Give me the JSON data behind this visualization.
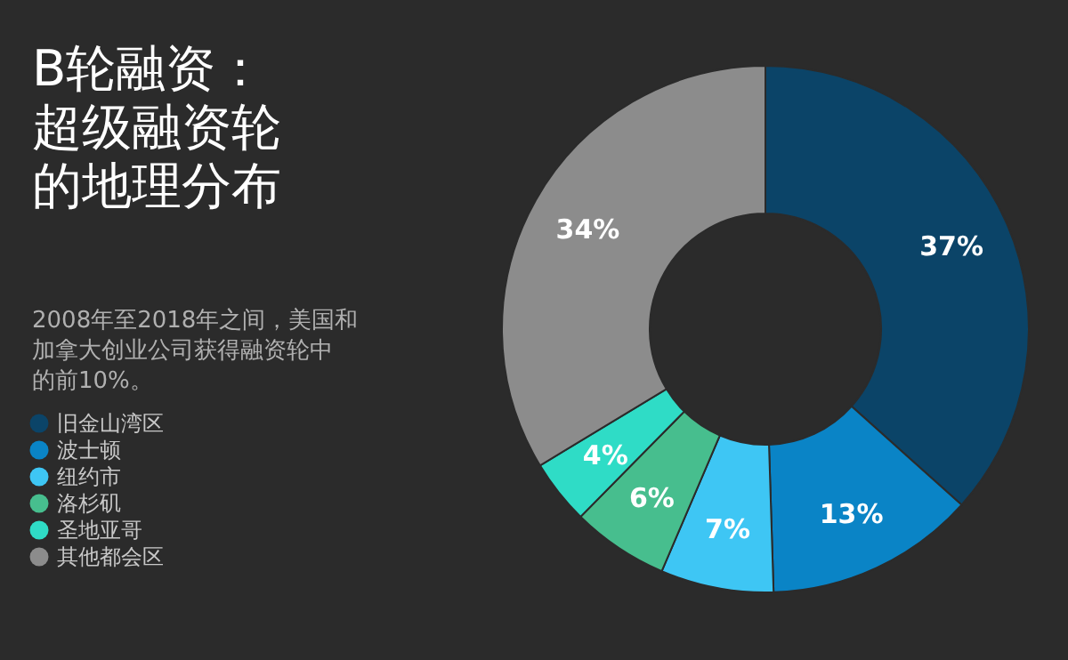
{
  "chart_data": {
    "type": "donut",
    "title": "B轮融资：超级融资轮的地理分布",
    "subtitle": "2008年至2018年之间，美国和加拿大创业公司获得融资轮中的前10%。",
    "categories": [
      "旧金山湾区",
      "波士顿",
      "纽约市",
      "洛杉矶",
      "圣地亚哥",
      "其他都会区"
    ],
    "values": [
      37,
      13,
      7,
      6,
      4,
      34
    ],
    "colors": [
      "#0b4468",
      "#0a84c6",
      "#3ec6f4",
      "#47be8e",
      "#2fdcc6",
      "#8c8c8c"
    ],
    "value_labels": [
      "37%",
      "13%",
      "7%",
      "6%",
      "4%",
      "34%"
    ],
    "legend": "bottom left"
  }
}
